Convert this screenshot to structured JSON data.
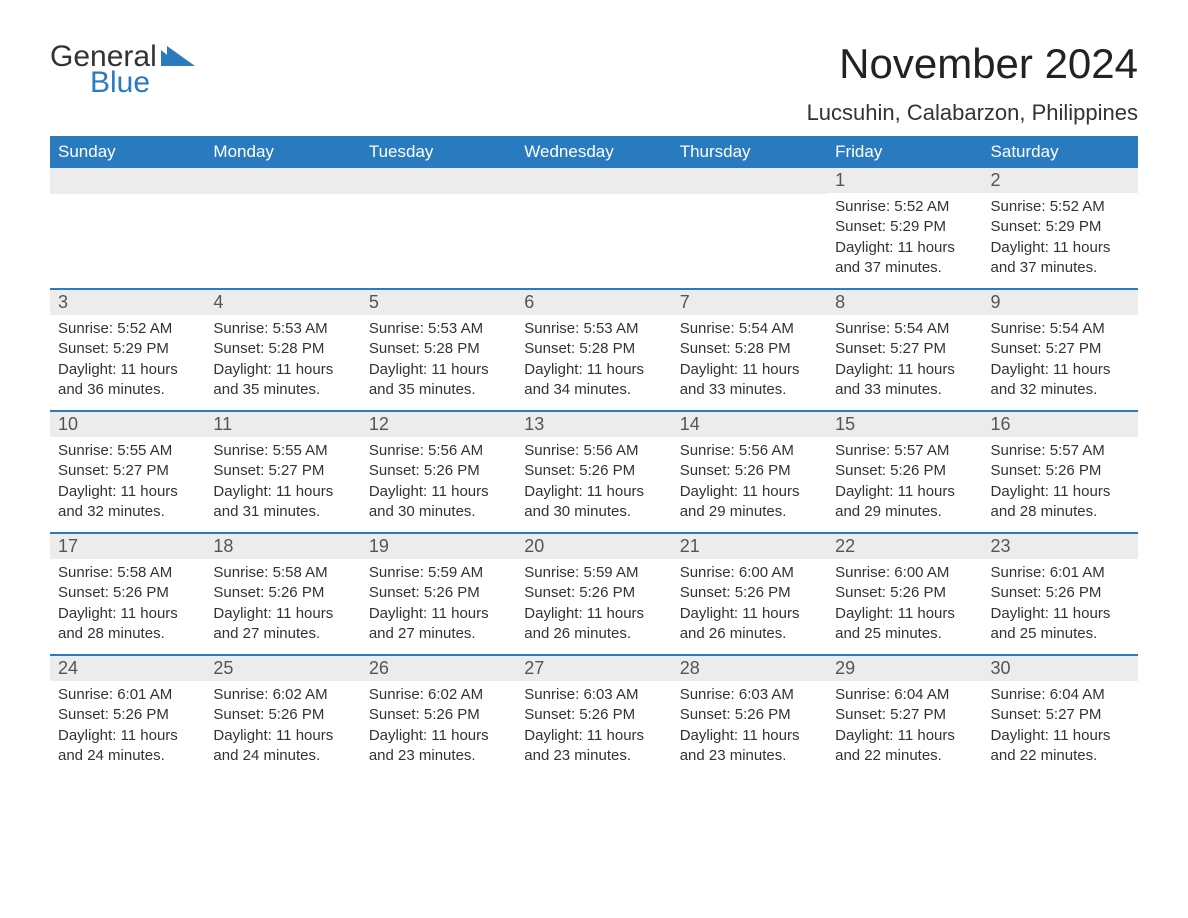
{
  "logo": {
    "general": "General",
    "blue": "Blue"
  },
  "title": "November 2024",
  "location": "Lucsuhin, Calabarzon, Philippines",
  "colors": {
    "header_bg": "#2a7ac0",
    "header_text": "#ffffff",
    "daynum_bg": "#ececec",
    "border_top": "#2a7ac0",
    "body_text": "#333333",
    "page_bg": "#ffffff"
  },
  "day_headers": [
    "Sunday",
    "Monday",
    "Tuesday",
    "Wednesday",
    "Thursday",
    "Friday",
    "Saturday"
  ],
  "weeks": [
    [
      null,
      null,
      null,
      null,
      null,
      {
        "n": "1",
        "sunrise": "Sunrise: 5:52 AM",
        "sunset": "Sunset: 5:29 PM",
        "daylight": "Daylight: 11 hours and 37 minutes."
      },
      {
        "n": "2",
        "sunrise": "Sunrise: 5:52 AM",
        "sunset": "Sunset: 5:29 PM",
        "daylight": "Daylight: 11 hours and 37 minutes."
      }
    ],
    [
      {
        "n": "3",
        "sunrise": "Sunrise: 5:52 AM",
        "sunset": "Sunset: 5:29 PM",
        "daylight": "Daylight: 11 hours and 36 minutes."
      },
      {
        "n": "4",
        "sunrise": "Sunrise: 5:53 AM",
        "sunset": "Sunset: 5:28 PM",
        "daylight": "Daylight: 11 hours and 35 minutes."
      },
      {
        "n": "5",
        "sunrise": "Sunrise: 5:53 AM",
        "sunset": "Sunset: 5:28 PM",
        "daylight": "Daylight: 11 hours and 35 minutes."
      },
      {
        "n": "6",
        "sunrise": "Sunrise: 5:53 AM",
        "sunset": "Sunset: 5:28 PM",
        "daylight": "Daylight: 11 hours and 34 minutes."
      },
      {
        "n": "7",
        "sunrise": "Sunrise: 5:54 AM",
        "sunset": "Sunset: 5:28 PM",
        "daylight": "Daylight: 11 hours and 33 minutes."
      },
      {
        "n": "8",
        "sunrise": "Sunrise: 5:54 AM",
        "sunset": "Sunset: 5:27 PM",
        "daylight": "Daylight: 11 hours and 33 minutes."
      },
      {
        "n": "9",
        "sunrise": "Sunrise: 5:54 AM",
        "sunset": "Sunset: 5:27 PM",
        "daylight": "Daylight: 11 hours and 32 minutes."
      }
    ],
    [
      {
        "n": "10",
        "sunrise": "Sunrise: 5:55 AM",
        "sunset": "Sunset: 5:27 PM",
        "daylight": "Daylight: 11 hours and 32 minutes."
      },
      {
        "n": "11",
        "sunrise": "Sunrise: 5:55 AM",
        "sunset": "Sunset: 5:27 PM",
        "daylight": "Daylight: 11 hours and 31 minutes."
      },
      {
        "n": "12",
        "sunrise": "Sunrise: 5:56 AM",
        "sunset": "Sunset: 5:26 PM",
        "daylight": "Daylight: 11 hours and 30 minutes."
      },
      {
        "n": "13",
        "sunrise": "Sunrise: 5:56 AM",
        "sunset": "Sunset: 5:26 PM",
        "daylight": "Daylight: 11 hours and 30 minutes."
      },
      {
        "n": "14",
        "sunrise": "Sunrise: 5:56 AM",
        "sunset": "Sunset: 5:26 PM",
        "daylight": "Daylight: 11 hours and 29 minutes."
      },
      {
        "n": "15",
        "sunrise": "Sunrise: 5:57 AM",
        "sunset": "Sunset: 5:26 PM",
        "daylight": "Daylight: 11 hours and 29 minutes."
      },
      {
        "n": "16",
        "sunrise": "Sunrise: 5:57 AM",
        "sunset": "Sunset: 5:26 PM",
        "daylight": "Daylight: 11 hours and 28 minutes."
      }
    ],
    [
      {
        "n": "17",
        "sunrise": "Sunrise: 5:58 AM",
        "sunset": "Sunset: 5:26 PM",
        "daylight": "Daylight: 11 hours and 28 minutes."
      },
      {
        "n": "18",
        "sunrise": "Sunrise: 5:58 AM",
        "sunset": "Sunset: 5:26 PM",
        "daylight": "Daylight: 11 hours and 27 minutes."
      },
      {
        "n": "19",
        "sunrise": "Sunrise: 5:59 AM",
        "sunset": "Sunset: 5:26 PM",
        "daylight": "Daylight: 11 hours and 27 minutes."
      },
      {
        "n": "20",
        "sunrise": "Sunrise: 5:59 AM",
        "sunset": "Sunset: 5:26 PM",
        "daylight": "Daylight: 11 hours and 26 minutes."
      },
      {
        "n": "21",
        "sunrise": "Sunrise: 6:00 AM",
        "sunset": "Sunset: 5:26 PM",
        "daylight": "Daylight: 11 hours and 26 minutes."
      },
      {
        "n": "22",
        "sunrise": "Sunrise: 6:00 AM",
        "sunset": "Sunset: 5:26 PM",
        "daylight": "Daylight: 11 hours and 25 minutes."
      },
      {
        "n": "23",
        "sunrise": "Sunrise: 6:01 AM",
        "sunset": "Sunset: 5:26 PM",
        "daylight": "Daylight: 11 hours and 25 minutes."
      }
    ],
    [
      {
        "n": "24",
        "sunrise": "Sunrise: 6:01 AM",
        "sunset": "Sunset: 5:26 PM",
        "daylight": "Daylight: 11 hours and 24 minutes."
      },
      {
        "n": "25",
        "sunrise": "Sunrise: 6:02 AM",
        "sunset": "Sunset: 5:26 PM",
        "daylight": "Daylight: 11 hours and 24 minutes."
      },
      {
        "n": "26",
        "sunrise": "Sunrise: 6:02 AM",
        "sunset": "Sunset: 5:26 PM",
        "daylight": "Daylight: 11 hours and 23 minutes."
      },
      {
        "n": "27",
        "sunrise": "Sunrise: 6:03 AM",
        "sunset": "Sunset: 5:26 PM",
        "daylight": "Daylight: 11 hours and 23 minutes."
      },
      {
        "n": "28",
        "sunrise": "Sunrise: 6:03 AM",
        "sunset": "Sunset: 5:26 PM",
        "daylight": "Daylight: 11 hours and 23 minutes."
      },
      {
        "n": "29",
        "sunrise": "Sunrise: 6:04 AM",
        "sunset": "Sunset: 5:27 PM",
        "daylight": "Daylight: 11 hours and 22 minutes."
      },
      {
        "n": "30",
        "sunrise": "Sunrise: 6:04 AM",
        "sunset": "Sunset: 5:27 PM",
        "daylight": "Daylight: 11 hours and 22 minutes."
      }
    ]
  ]
}
